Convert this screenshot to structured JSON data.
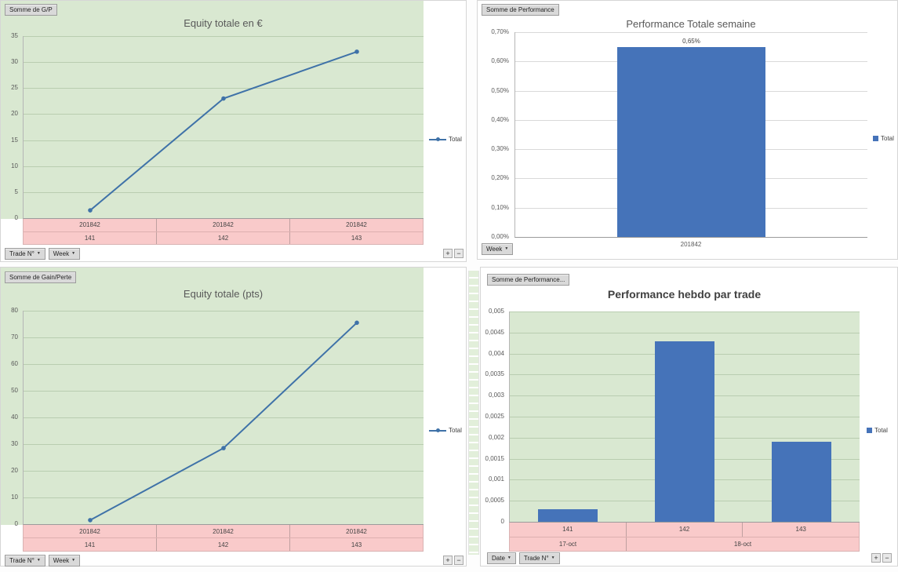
{
  "icons": {
    "dropdown": "▼",
    "plus": "+",
    "minus": "−"
  },
  "colors": {
    "green": "#d9e8d1",
    "pink": "#f9caca",
    "line": "#3f72a8",
    "bar": "#4573b9",
    "grid_green": "#b9cdb0",
    "grid_white": "#d9d9d9",
    "axis": "#9b9b9b"
  },
  "chart_data": [
    {
      "type": "line",
      "title": "Equity totale en €",
      "ylim": [
        0,
        35
      ],
      "y_ticks": [
        "0",
        "5",
        "10",
        "15",
        "20",
        "25",
        "30",
        "35"
      ],
      "categories": [
        "141",
        "142",
        "143"
      ],
      "week_labels": [
        "201842",
        "201842",
        "201842"
      ],
      "values": [
        1.5,
        23,
        32
      ],
      "band_rows": [
        [
          {
            "label": "201842",
            "span": 1
          },
          {
            "label": "201842",
            "span": 1
          },
          {
            "label": "201842",
            "span": 1
          }
        ],
        [
          {
            "label": "141",
            "span": 1
          },
          {
            "label": "142",
            "span": 1
          },
          {
            "label": "143",
            "span": 1
          }
        ]
      ],
      "legend": [
        "Total"
      ],
      "legend_position": "right",
      "grid": true
    },
    {
      "type": "bar",
      "title": "Performance Totale semaine",
      "unit": "%",
      "ylim": [
        0,
        0.7
      ],
      "y_ticks": [
        "0,00%",
        "0,10%",
        "0,20%",
        "0,30%",
        "0,40%",
        "0,50%",
        "0,60%",
        "0,70%"
      ],
      "x_labels": [
        "201842"
      ],
      "values": [
        0.65
      ],
      "data_labels": [
        "0,65%"
      ],
      "bar_width_frac": 0.42,
      "legend": [
        "Total"
      ],
      "legend_position": "right",
      "grid": true
    },
    {
      "type": "line",
      "title": "Equity totale (pts)",
      "ylim": [
        0,
        80
      ],
      "y_ticks": [
        "0",
        "10",
        "20",
        "30",
        "40",
        "50",
        "60",
        "70",
        "80"
      ],
      "categories": [
        "141",
        "142",
        "143"
      ],
      "week_labels": [
        "201842",
        "201842",
        "201842"
      ],
      "values": [
        1.5,
        28.5,
        75.5
      ],
      "band_rows": [
        [
          {
            "label": "201842",
            "span": 1
          },
          {
            "label": "201842",
            "span": 1
          },
          {
            "label": "201842",
            "span": 1
          }
        ],
        [
          {
            "label": "141",
            "span": 1
          },
          {
            "label": "142",
            "span": 1
          },
          {
            "label": "143",
            "span": 1
          }
        ]
      ],
      "legend": [
        "Total"
      ],
      "legend_position": "right",
      "grid": true
    },
    {
      "type": "bar",
      "title": "Performance hebdo par trade",
      "ylim": [
        0,
        0.005
      ],
      "y_ticks": [
        "0",
        "0,0005",
        "0,001",
        "0,0015",
        "0,002",
        "0,0025",
        "0,003",
        "0,0035",
        "0,004",
        "0,0045",
        "0,005"
      ],
      "categories": [
        "141",
        "142",
        "143"
      ],
      "values": [
        0.0003,
        0.0043,
        0.0019
      ],
      "band_rows": [
        [
          {
            "label": "141",
            "span": 1
          },
          {
            "label": "142",
            "span": 1
          },
          {
            "label": "143",
            "span": 1
          }
        ],
        [
          {
            "label": "17-oct",
            "span": 1
          },
          {
            "label": "18-oct",
            "span": 2
          }
        ]
      ],
      "bar_width_frac": 0.17,
      "legend": [
        "Total"
      ],
      "legend_position": "right",
      "grid": true
    }
  ],
  "ui": {
    "panels": [
      {
        "field_button": "Somme de G/P",
        "filters": [
          "Trade N°",
          "Week"
        ]
      },
      {
        "field_button": "Somme de Performance",
        "filters": [
          "Week"
        ]
      },
      {
        "field_button": "Somme de Gain/Perte",
        "filters": [
          "Trade N°",
          "Week"
        ]
      },
      {
        "field_button": "Somme de Performance...",
        "filters": [
          "Date",
          "Trade N°"
        ]
      }
    ]
  }
}
